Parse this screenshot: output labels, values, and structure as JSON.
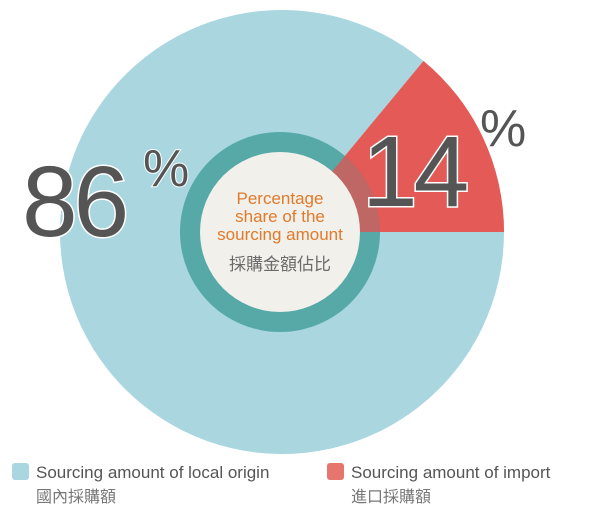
{
  "chart_data": {
    "type": "pie",
    "title": [
      "Percentage",
      "share of the",
      "sourcing amount"
    ],
    "subtitle": "採購金額佔比",
    "categories": [
      "Sourcing amount of local origin",
      "Sourcing amount of import"
    ],
    "categories_zh": [
      "國內採購額",
      "進口採購額"
    ],
    "values": [
      86,
      14
    ],
    "value_suffix": "%",
    "colors": [
      "#a9d6df",
      "#e5756d"
    ],
    "legend": "bottom"
  }
}
